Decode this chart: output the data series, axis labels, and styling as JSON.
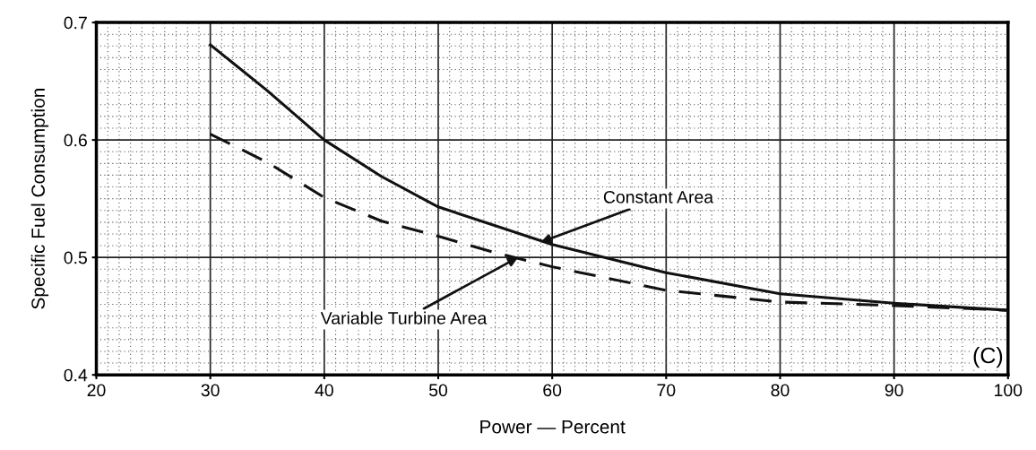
{
  "chart_data": {
    "type": "line",
    "xlabel": "Power — Percent",
    "ylabel": "Specific Fuel Consumption",
    "xlim": [
      20,
      100
    ],
    "ylim": [
      0.4,
      0.7
    ],
    "xticks": [
      20,
      30,
      40,
      50,
      60,
      70,
      80,
      90,
      100
    ],
    "yticks": [
      0.4,
      0.5,
      0.6,
      0.7
    ],
    "grid": true,
    "series": [
      {
        "color": "#111111",
        "line_style": "solid",
        "x": [
          30,
          35,
          40,
          45,
          50,
          55,
          60,
          70,
          80,
          90,
          100
        ],
        "values": [
          0.681,
          0.642,
          0.6,
          0.569,
          0.543,
          0.527,
          0.511,
          0.487,
          0.469,
          0.461,
          0.455
        ]
      },
      {
        "color": "#111111",
        "line_style": "dashed",
        "x": [
          30,
          35,
          40,
          45,
          50,
          55,
          60,
          70,
          80,
          90,
          100
        ],
        "values": [
          0.605,
          0.581,
          0.551,
          0.531,
          0.518,
          0.504,
          0.492,
          0.472,
          0.462,
          0.459,
          0.455
        ]
      }
    ],
    "annotations": [
      {
        "text": "Constant Area",
        "x": 59,
        "y": 0.513
      },
      {
        "text": "Variable Turbine Area",
        "x": 57,
        "y": 0.5
      },
      "(C)"
    ]
  }
}
